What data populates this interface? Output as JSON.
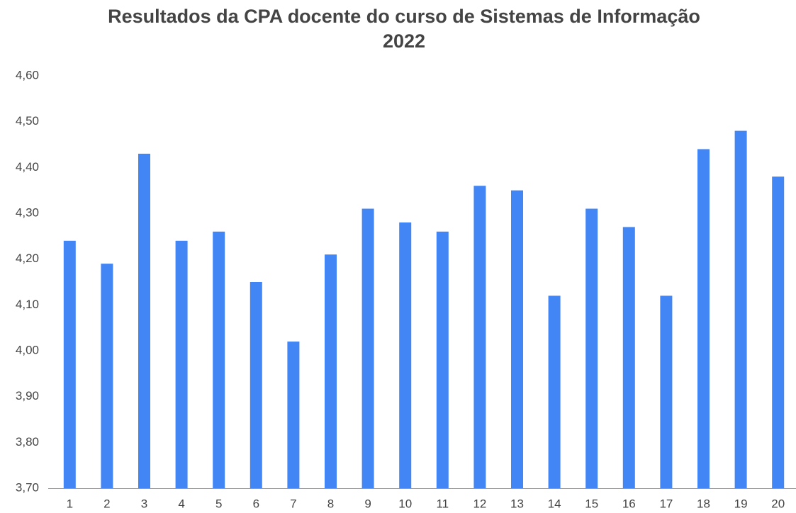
{
  "chart_data": {
    "type": "bar",
    "title": "Resultados da CPA docente do curso de Sistemas de Informação 2022",
    "categories": [
      "1",
      "2",
      "3",
      "4",
      "5",
      "6",
      "7",
      "8",
      "9",
      "10",
      "11",
      "12",
      "13",
      "14",
      "15",
      "16",
      "17",
      "18",
      "19",
      "20"
    ],
    "values": [
      4.24,
      4.19,
      4.43,
      4.24,
      4.26,
      4.15,
      4.02,
      4.21,
      4.31,
      4.28,
      4.26,
      4.36,
      4.35,
      4.12,
      4.31,
      4.27,
      4.12,
      4.44,
      4.48,
      4.38
    ],
    "color": "#4285f4",
    "ylim": [
      3.7,
      4.6
    ],
    "yticks": [
      {
        "value": 3.7,
        "label": "3,70"
      },
      {
        "value": 3.8,
        "label": "3,80"
      },
      {
        "value": 3.9,
        "label": "3,90"
      },
      {
        "value": 4.0,
        "label": "4,00"
      },
      {
        "value": 4.1,
        "label": "4,10"
      },
      {
        "value": 4.2,
        "label": "4,20"
      },
      {
        "value": 4.3,
        "label": "4,30"
      },
      {
        "value": 4.4,
        "label": "4,40"
      },
      {
        "value": 4.5,
        "label": "4,50"
      },
      {
        "value": 4.6,
        "label": "4,60"
      }
    ],
    "grid": false
  }
}
